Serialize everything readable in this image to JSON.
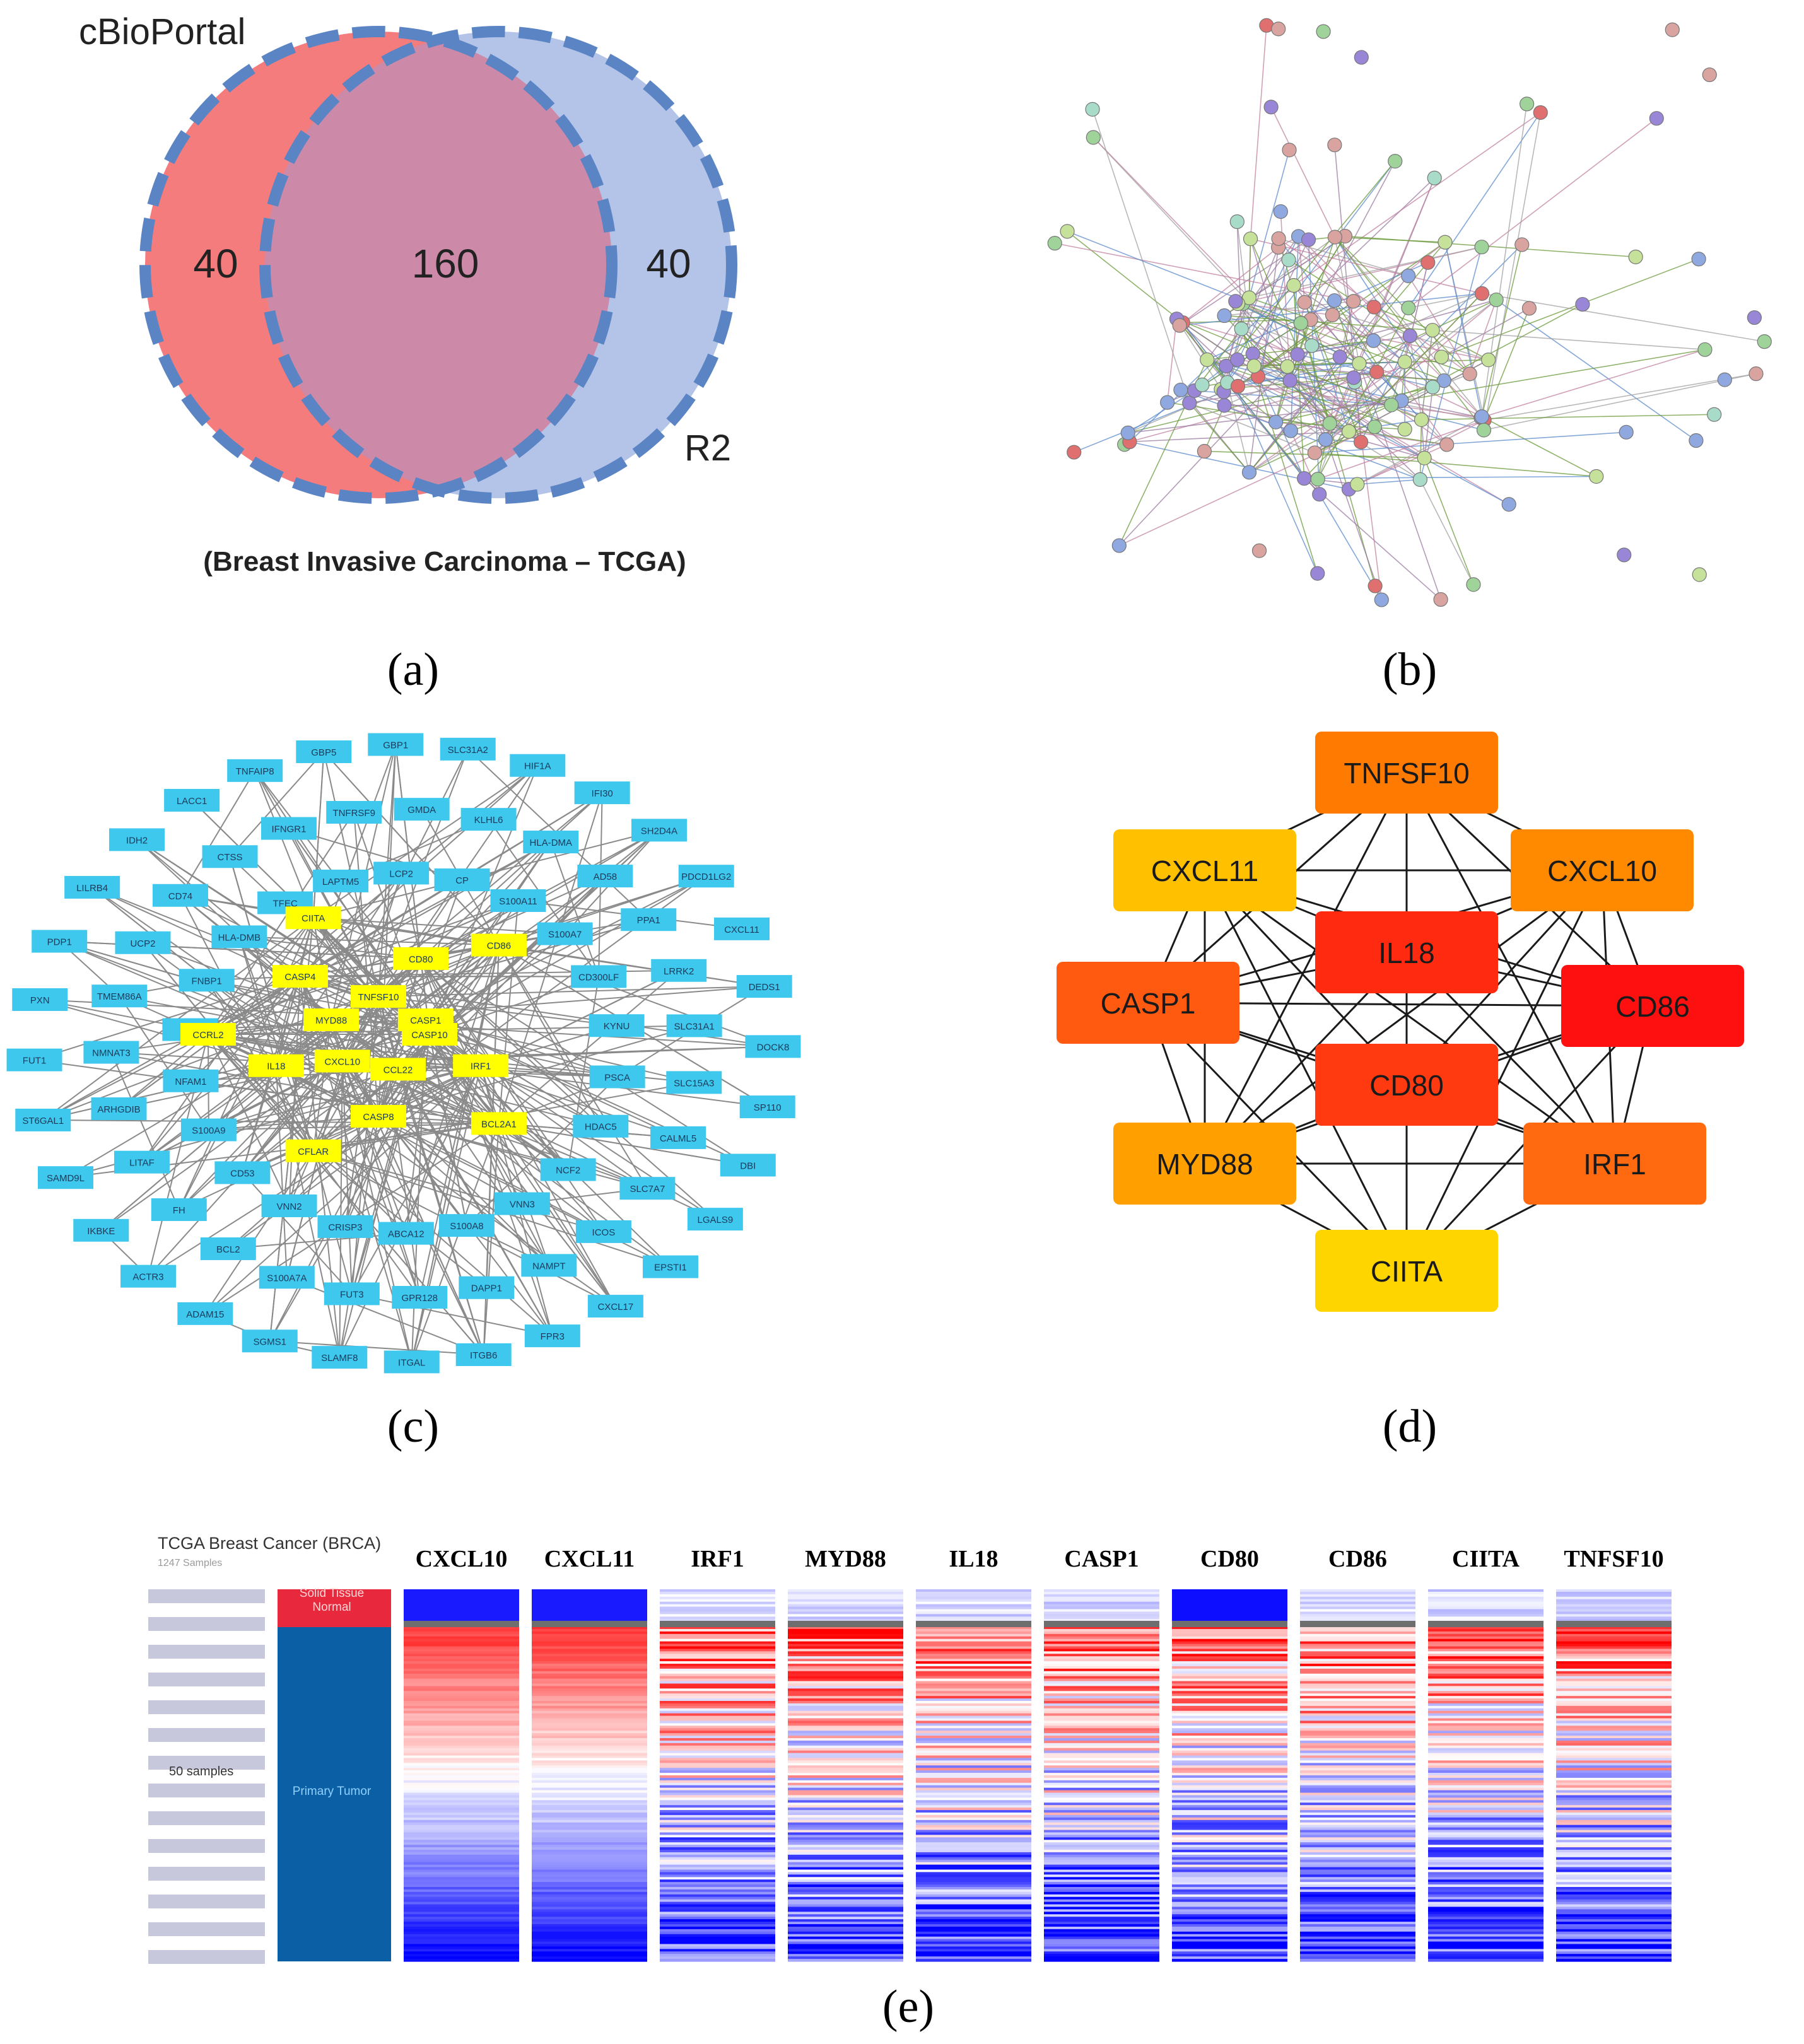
{
  "panel_a": {
    "label_left": "cBioPortal",
    "label_right": "R2",
    "left_only": "40",
    "overlap": "160",
    "right_only": "40",
    "subtitle": "(Breast Invasive Carcinoma – TCGA)",
    "colors": {
      "left": "#f47c7c",
      "right": "#b4c4e8",
      "overlap": "#cc8aa8",
      "border": "#5b84c4"
    }
  },
  "panel_b": {
    "description_colors": [
      "#9fd39a",
      "#8fa8e0",
      "#c6e29a",
      "#9a86d6",
      "#d9a3a0",
      "#a9dcc8",
      "#e07070"
    ]
  },
  "panel_c": {
    "node_color": "#3fc8ee",
    "hub_color": "#ffff00",
    "outer_nodes": [
      "PDCD1LG2",
      "CXCL11",
      "DEDS1",
      "DOCK8",
      "SP110",
      "DBI",
      "LGALS9",
      "EPSTI1",
      "CXCL17",
      "FPR3",
      "ITGB6",
      "ITGAL",
      "SLAMF8",
      "SGMS1",
      "ADAM15",
      "ACTR3",
      "IKBKE",
      "SAMD9L",
      "ST6GAL1",
      "FUT1",
      "PXN",
      "PDP1",
      "LILRB4",
      "IDH2",
      "LACC1",
      "TNFAIP8",
      "GBP5",
      "GBP1",
      "SLC31A2",
      "HIF1A",
      "IFI30",
      "SH2D4A",
      "AD58",
      "PPA1",
      "LRRK2",
      "SLC31A1",
      "SLC15A3",
      "CALML5",
      "SLC7A7",
      "ICOS",
      "NAMPT",
      "DAPP1",
      "GPR128",
      "FUT3",
      "S100A7A",
      "BCL2",
      "FH",
      "LITAF",
      "ARHGDIB",
      "NMNAT3",
      "TMEM86A",
      "UCP2",
      "CD74",
      "CTSS",
      "IFNGR1",
      "TNFRSF9",
      "GMDA",
      "KLHL6",
      "HLA-DMA",
      "S100A11",
      "S100A7",
      "CD300LF",
      "KYNU",
      "PSCA",
      "HDAC5",
      "NCF2",
      "VNN3",
      "S100A8",
      "ABCA12",
      "CRISP3",
      "VNN2",
      "CD53",
      "S100A9",
      "NFAM1",
      "LTF",
      "FNBP1",
      "HLA-DMB",
      "TFEC",
      "LAPTM5",
      "LCP2",
      "CP"
    ],
    "hub_nodes": [
      "CASP10",
      "IRF1",
      "BCL2A1",
      "CCL22",
      "CASP8",
      "CFLAR",
      "CXCL10",
      "IL18",
      "CCRL2",
      "MYD88",
      "CASP4",
      "CIITA",
      "TNFSF10",
      "CD80",
      "CD86",
      "CASP1"
    ]
  },
  "panel_d": {
    "nodes": [
      {
        "label": "TNFSF10",
        "color": "#ff7a00"
      },
      {
        "label": "CXCL11",
        "color": "#ffc000"
      },
      {
        "label": "CXCL10",
        "color": "#ff8a00"
      },
      {
        "label": "IL18",
        "color": "#ff2a10"
      },
      {
        "label": "CASP1",
        "color": "#ff5a10"
      },
      {
        "label": "CD86",
        "color": "#ff1010"
      },
      {
        "label": "CD80",
        "color": "#ff3a10"
      },
      {
        "label": "MYD88",
        "color": "#ffa000"
      },
      {
        "label": "IRF1",
        "color": "#ff6a10"
      },
      {
        "label": "CIITA",
        "color": "#ffd500"
      }
    ]
  },
  "panel_e": {
    "dataset_title": "TCGA Breast Cancer (BRCA)",
    "dataset_samples": "1247 Samples",
    "sample_label": "50 samples",
    "normal_label": "Solid Tissue Normal",
    "tumor_label": "Primary Tumor",
    "normal_color": "#e8283c",
    "tumor_color": "#0b5fa5",
    "genes": [
      "CXCL10",
      "CXCL11",
      "IRF1",
      "MYD88",
      "IL18",
      "CASP1",
      "CD80",
      "CD86",
      "CIITA",
      "TNFSF10"
    ]
  },
  "captions": {
    "a": "(a)",
    "b": "(b)",
    "c": "(c)",
    "d": "(d)",
    "e": "(e)"
  }
}
